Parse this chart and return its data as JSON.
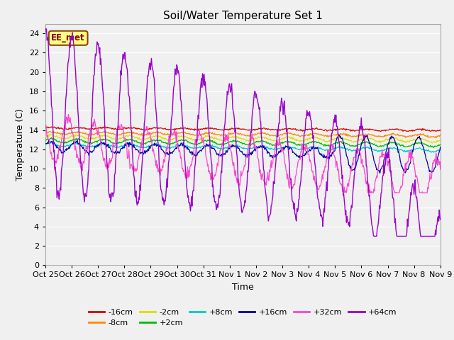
{
  "title": "Soil/Water Temperature Set 1",
  "xlabel": "Time",
  "ylabel": "Temperature (C)",
  "ylim": [
    0,
    25
  ],
  "xlim": [
    0,
    350
  ],
  "x_tick_labels": [
    "Oct 25",
    "Oct 26",
    "Oct 27",
    "Oct 28",
    "Oct 29",
    "Oct 30",
    "Oct 31",
    "Nov 1",
    "Nov 2",
    "Nov 3",
    "Nov 4",
    "Nov 5",
    "Nov 6",
    "Nov 7",
    "Nov 8",
    "Nov 9"
  ],
  "series_colors": {
    "-16cm": "#dd0000",
    "-8cm": "#ff8800",
    "-2cm": "#dddd00",
    "+2cm": "#00bb00",
    "+8cm": "#00cccc",
    "+16cm": "#0000aa",
    "+32cm": "#ff44cc",
    "+64cm": "#9900cc"
  },
  "plot_bg": "#f0f0f0",
  "fig_bg": "#f0f0f0",
  "annotation_text": "EE_met",
  "annotation_bg": "#ffff88",
  "annotation_border": "#884400"
}
